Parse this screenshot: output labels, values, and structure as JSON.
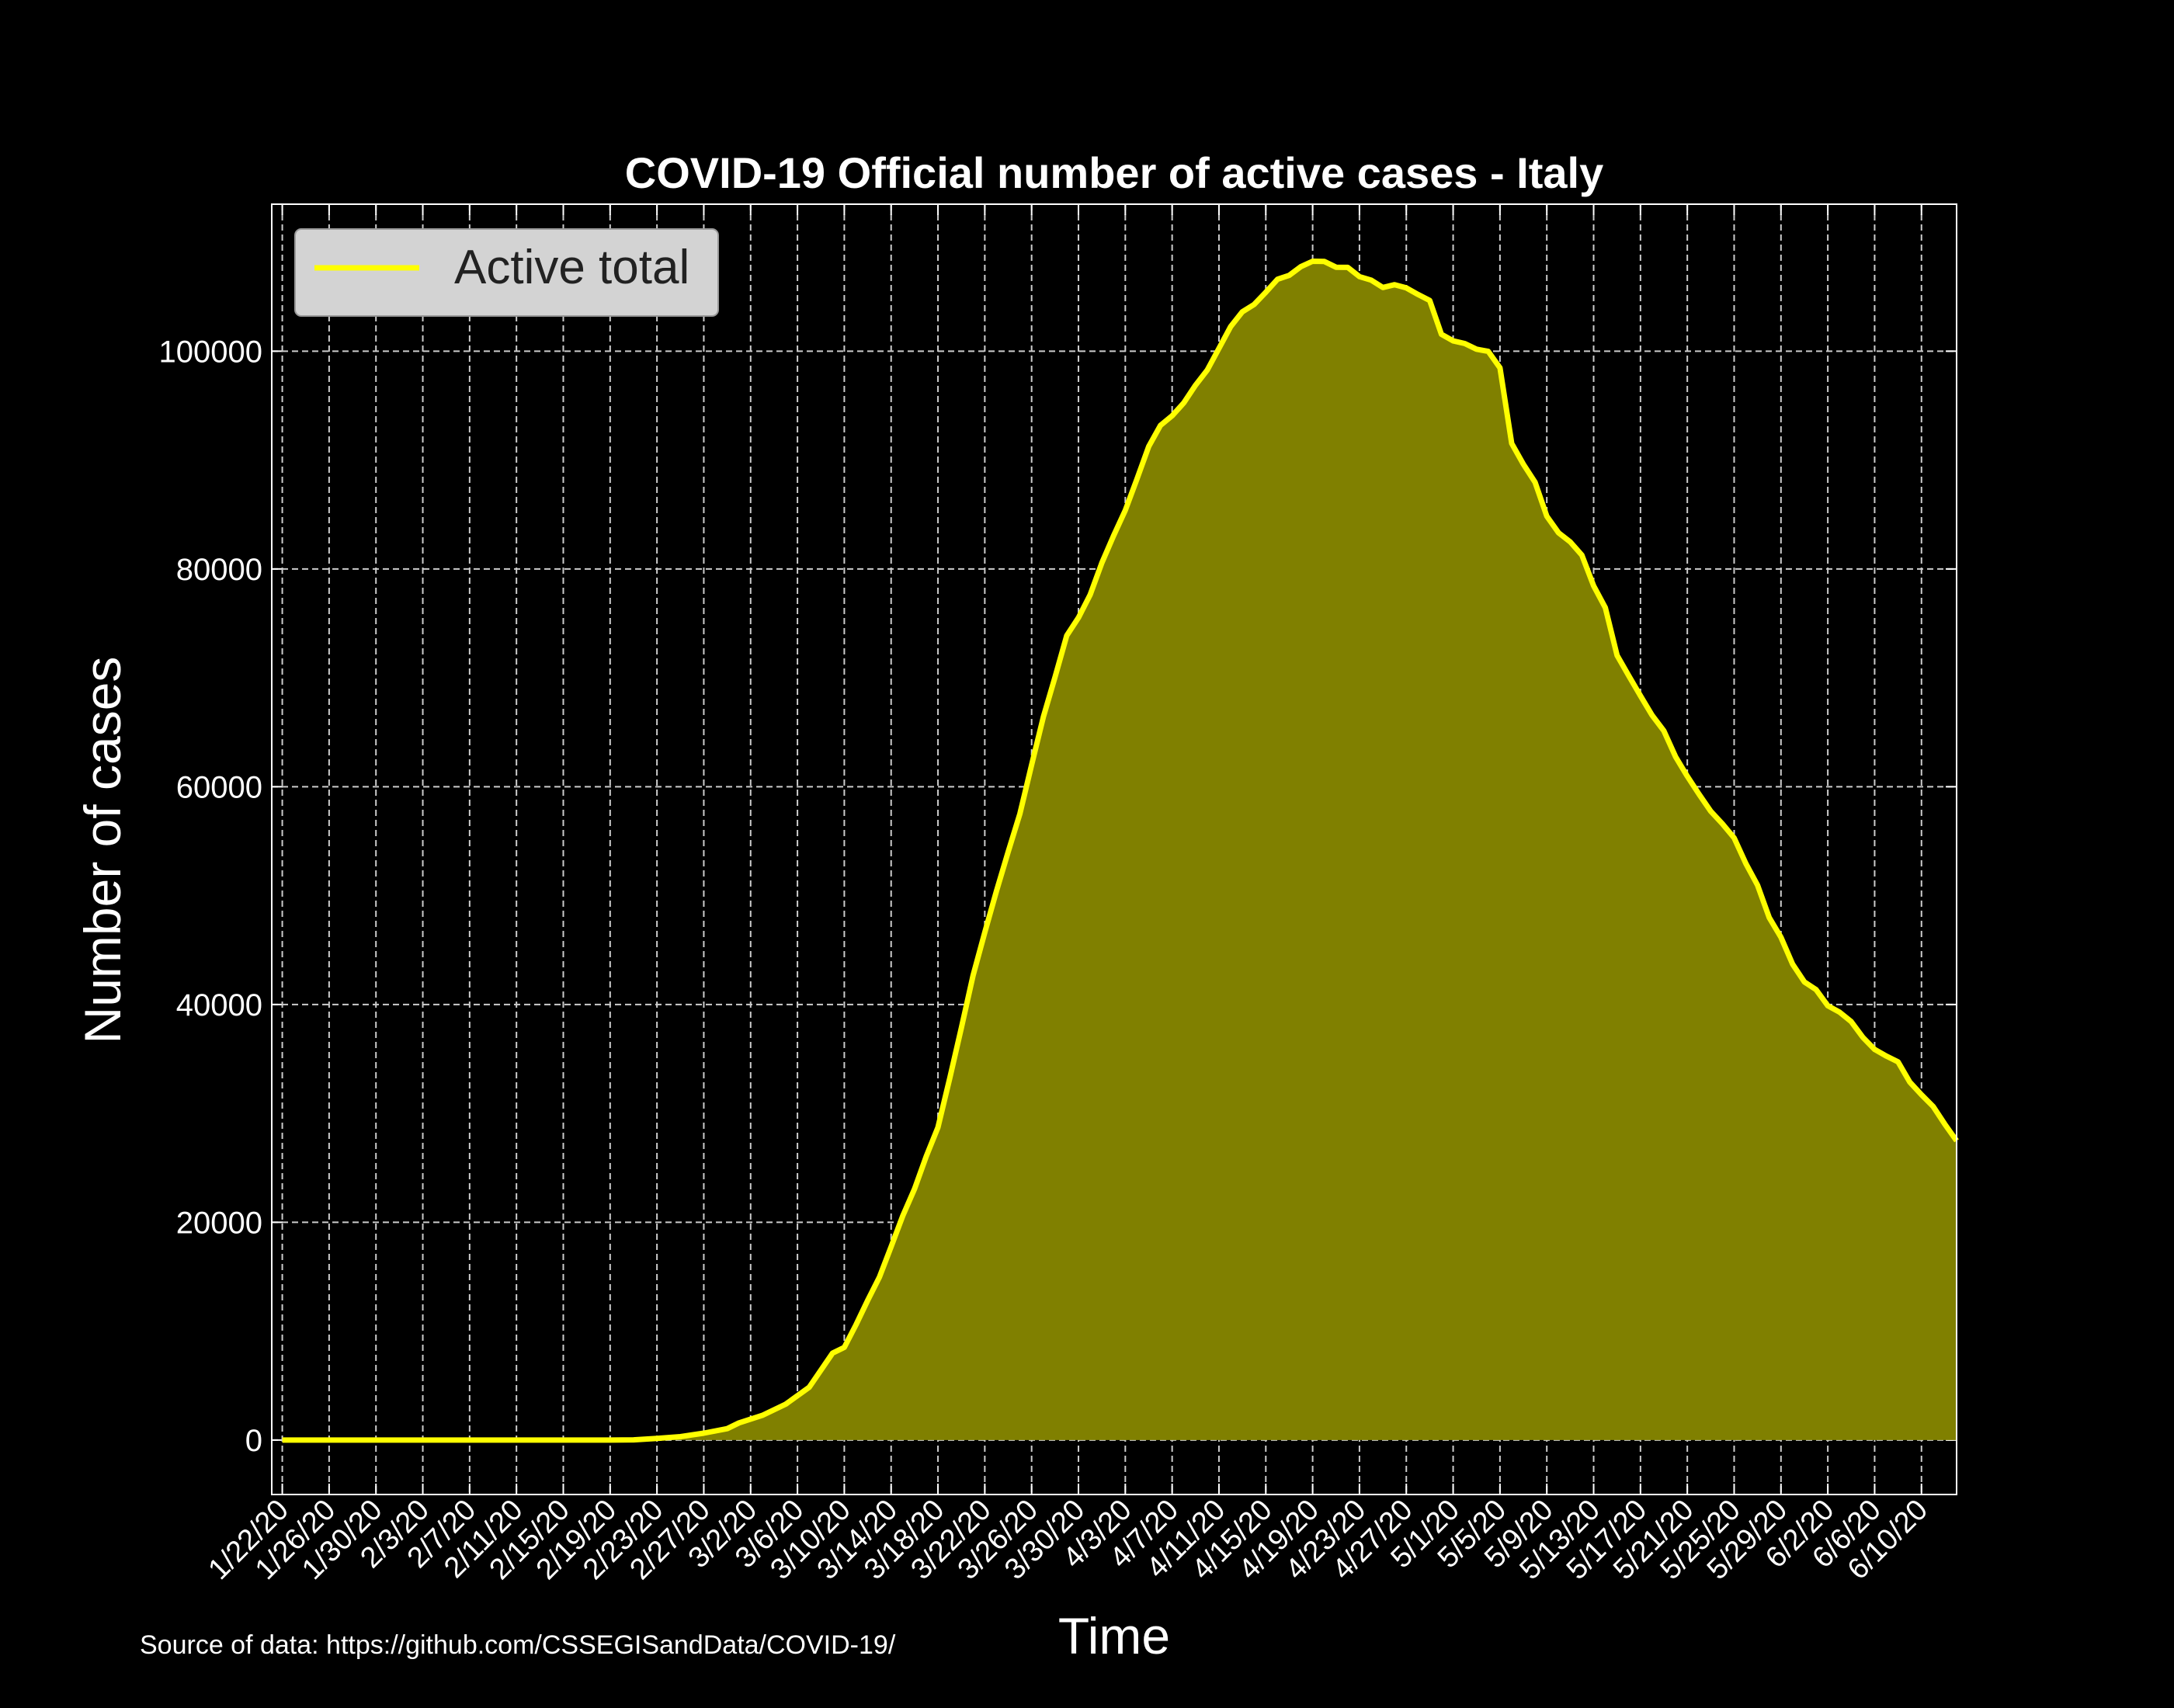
{
  "chart_data": {
    "type": "area",
    "title": "COVID-19 Official number of active cases - Italy",
    "xlabel": "Time",
    "ylabel": "Number of cases",
    "ylim": [
      -5000,
      113500
    ],
    "yticks": [
      0,
      20000,
      40000,
      60000,
      80000,
      100000
    ],
    "grid": true,
    "legend": "top-left",
    "colors": {
      "background": "#000000",
      "line": "#ffff00",
      "fill": "#808000",
      "text": "#ffffff",
      "grid": "#cccccc",
      "legend_bg": "#d3d3d3",
      "legend_text": "#222222"
    },
    "xticks": [
      "1/22/20",
      "1/26/20",
      "1/30/20",
      "2/3/20",
      "2/7/20",
      "2/11/20",
      "2/15/20",
      "2/19/20",
      "2/23/20",
      "2/27/20",
      "3/2/20",
      "3/6/20",
      "3/10/20",
      "3/14/20",
      "3/18/20",
      "3/22/20",
      "3/26/20",
      "3/30/20",
      "4/3/20",
      "4/7/20",
      "4/11/20",
      "4/15/20",
      "4/19/20",
      "4/23/20",
      "4/27/20",
      "5/1/20",
      "5/5/20",
      "5/9/20",
      "5/13/20",
      "5/17/20",
      "5/21/20",
      "5/25/20",
      "5/29/20",
      "6/2/20",
      "6/6/20",
      "6/10/20"
    ],
    "series": [
      {
        "name": "Active total",
        "points": [
          [
            "1/22/20",
            0
          ],
          [
            "2/19/20",
            0
          ],
          [
            "2/21/20",
            17
          ],
          [
            "2/23/20",
            150
          ],
          [
            "2/25/20",
            311
          ],
          [
            "2/27/20",
            633
          ],
          [
            "2/29/20",
            1049
          ],
          [
            "3/1/20",
            1577
          ],
          [
            "3/3/20",
            2263
          ],
          [
            "3/5/20",
            3296
          ],
          [
            "3/7/20",
            4850
          ],
          [
            "3/9/20",
            7985
          ],
          [
            "3/10/20",
            8514
          ],
          [
            "3/11/20",
            10590
          ],
          [
            "3/12/20",
            12839
          ],
          [
            "3/13/20",
            14955
          ],
          [
            "3/14/20",
            17750
          ],
          [
            "3/15/20",
            20603
          ],
          [
            "3/16/20",
            23073
          ],
          [
            "3/17/20",
            26062
          ],
          [
            "3/18/20",
            28710
          ],
          [
            "3/19/20",
            33190
          ],
          [
            "3/20/20",
            37860
          ],
          [
            "3/21/20",
            42681
          ],
          [
            "3/22/20",
            46638
          ],
          [
            "3/23/20",
            50418
          ],
          [
            "3/24/20",
            54030
          ],
          [
            "3/25/20",
            57521
          ],
          [
            "3/26/20",
            62013
          ],
          [
            "3/27/20",
            66414
          ],
          [
            "3/28/20",
            70065
          ],
          [
            "3/29/20",
            73880
          ],
          [
            "3/30/20",
            75528
          ],
          [
            "3/31/20",
            77635
          ],
          [
            "4/1/20",
            80572
          ],
          [
            "4/2/20",
            83049
          ],
          [
            "4/3/20",
            85388
          ],
          [
            "4/4/20",
            88274
          ],
          [
            "4/5/20",
            91246
          ],
          [
            "4/6/20",
            93187
          ],
          [
            "4/7/20",
            94067
          ],
          [
            "4/8/20",
            95262
          ],
          [
            "4/9/20",
            96877
          ],
          [
            "4/10/20",
            98273
          ],
          [
            "4/11/20",
            100269
          ],
          [
            "4/12/20",
            102253
          ],
          [
            "4/13/20",
            103616
          ],
          [
            "4/14/20",
            104291
          ],
          [
            "4/15/20",
            105418
          ],
          [
            "4/16/20",
            106607
          ],
          [
            "4/17/20",
            106962
          ],
          [
            "4/18/20",
            107771
          ],
          [
            "4/19/20",
            108257
          ],
          [
            "4/20/20",
            108237
          ],
          [
            "4/21/20",
            107709
          ],
          [
            "4/22/20",
            107699
          ],
          [
            "4/23/20",
            106848
          ],
          [
            "4/24/20",
            106527
          ],
          [
            "4/25/20",
            105847
          ],
          [
            "4/26/20",
            106103
          ],
          [
            "4/27/20",
            105813
          ],
          [
            "4/28/20",
            105205
          ],
          [
            "4/29/20",
            104657
          ],
          [
            "4/30/20",
            101551
          ],
          [
            "5/1/20",
            100943
          ],
          [
            "5/2/20",
            100704
          ],
          [
            "5/3/20",
            100179
          ],
          [
            "5/4/20",
            99980
          ],
          [
            "5/5/20",
            98467
          ],
          [
            "5/6/20",
            91528
          ],
          [
            "5/7/20",
            89624
          ],
          [
            "5/8/20",
            87961
          ],
          [
            "5/9/20",
            84842
          ],
          [
            "5/10/20",
            83324
          ],
          [
            "5/11/20",
            82488
          ],
          [
            "5/12/20",
            81266
          ],
          [
            "5/13/20",
            78457
          ],
          [
            "5/14/20",
            76440
          ],
          [
            "5/15/20",
            72070
          ],
          [
            "5/16/20",
            70187
          ],
          [
            "5/17/20",
            68351
          ],
          [
            "5/18/20",
            66553
          ],
          [
            "5/19/20",
            65129
          ],
          [
            "5/20/20",
            62752
          ],
          [
            "5/21/20",
            60960
          ],
          [
            "5/22/20",
            59322
          ],
          [
            "5/23/20",
            57752
          ],
          [
            "5/24/20",
            56594
          ],
          [
            "5/25/20",
            55300
          ],
          [
            "5/26/20",
            52942
          ],
          [
            "5/27/20",
            50966
          ],
          [
            "5/28/20",
            47986
          ],
          [
            "5/29/20",
            46175
          ],
          [
            "5/30/20",
            43691
          ],
          [
            "5/31/20",
            42075
          ],
          [
            "6/1/20",
            41367
          ],
          [
            "6/2/20",
            39893
          ],
          [
            "6/3/20",
            39297
          ],
          [
            "6/4/20",
            38429
          ],
          [
            "6/5/20",
            36976
          ],
          [
            "6/6/20",
            35877
          ],
          [
            "6/7/20",
            35262
          ],
          [
            "6/8/20",
            34730
          ],
          [
            "6/9/20",
            32872
          ],
          [
            "6/10/20",
            31710
          ],
          [
            "6/11/20",
            30637
          ],
          [
            "6/12/20",
            29000
          ],
          [
            "6/13/20",
            27485
          ]
        ]
      }
    ]
  },
  "source_note": "Source of data: https://github.com/CSSEGISandData/COVID-19/"
}
